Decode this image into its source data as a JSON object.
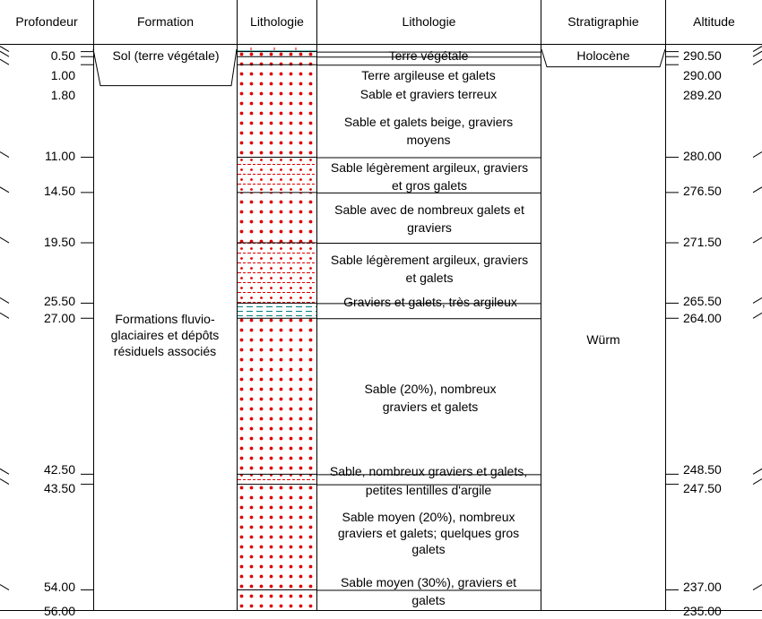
{
  "headers": {
    "profondeur": "Profondeur",
    "formation": "Formation",
    "lithologie_col": "Lithologie",
    "lithologie_desc": "Lithologie",
    "stratigraphie": "Stratigraphie",
    "altitude": "Altitude"
  },
  "depth_range": [
    0,
    56
  ],
  "ground_altitude": 291.0,
  "depths": [
    "0.50",
    "1.00",
    "1.80",
    "11.00",
    "14.50",
    "19.50",
    "25.50",
    "27.00",
    "42.50",
    "43.50",
    "54.00",
    "56.00"
  ],
  "altitudes": [
    "290.50",
    "290.00",
    "289.20",
    "280.00",
    "276.50",
    "271.50",
    "265.50",
    "264.00",
    "248.50",
    "247.50",
    "237.00",
    "235.00"
  ],
  "formations": [
    {
      "label": "Sol (terre végétale)",
      "top": 0,
      "bottom": 0.5
    },
    {
      "label": "Formations fluvio-glaciaires et dépôts résiduels associés",
      "top": 0.5,
      "bottom": 56
    }
  ],
  "stratigraphy": [
    {
      "label": "Holocène",
      "top": 0,
      "bottom": 0.5
    },
    {
      "label": "Würm",
      "top": 0.5,
      "bottom": 56
    }
  ],
  "layers": [
    {
      "top": 0,
      "bottom": 0.5,
      "pattern": "topsoil",
      "label": "Terre végétale"
    },
    {
      "top": 0.5,
      "bottom": 1.0,
      "pattern": "dots",
      "label": "Terre argileuse et galets"
    },
    {
      "top": 1.0,
      "bottom": 1.8,
      "pattern": "dots",
      "label": "Sable et graviers terreux"
    },
    {
      "top": 1.8,
      "bottom": 11.0,
      "pattern": "dots",
      "label": "Sable et galets beige, graviers moyens"
    },
    {
      "top": 11.0,
      "bottom": 14.5,
      "pattern": "dashdots",
      "label": "Sable légèrement argileux, graviers et gros galets"
    },
    {
      "top": 14.5,
      "bottom": 19.5,
      "pattern": "dots",
      "label": "Sable avec de nombreux galets et graviers"
    },
    {
      "top": 19.5,
      "bottom": 25.5,
      "pattern": "dashdots",
      "label": "Sable légèrement argileux, graviers et galets"
    },
    {
      "top": 25.5,
      "bottom": 27.0,
      "pattern": "clay",
      "label": "Graviers et galets, très argileux"
    },
    {
      "top": 27.0,
      "bottom": 42.5,
      "pattern": "dots",
      "label": "Sable (20%), nombreux graviers et galets"
    },
    {
      "top": 42.5,
      "bottom": 43.5,
      "pattern": "dashdots",
      "label": "Sable, nombreux graviers et galets, petites lentilles d'argile"
    },
    {
      "top": 43.5,
      "bottom": 54.0,
      "pattern": "dots",
      "label": "Sable moyen (20%), nombreux graviers et galets; quelques gros galets"
    },
    {
      "top": 54.0,
      "bottom": 56.0,
      "pattern": "dots",
      "label": "Sable moyen (30%), graviers et galets"
    }
  ],
  "colors": {
    "dots": "#e00000",
    "clay": "#008080",
    "lines": "#000000"
  }
}
